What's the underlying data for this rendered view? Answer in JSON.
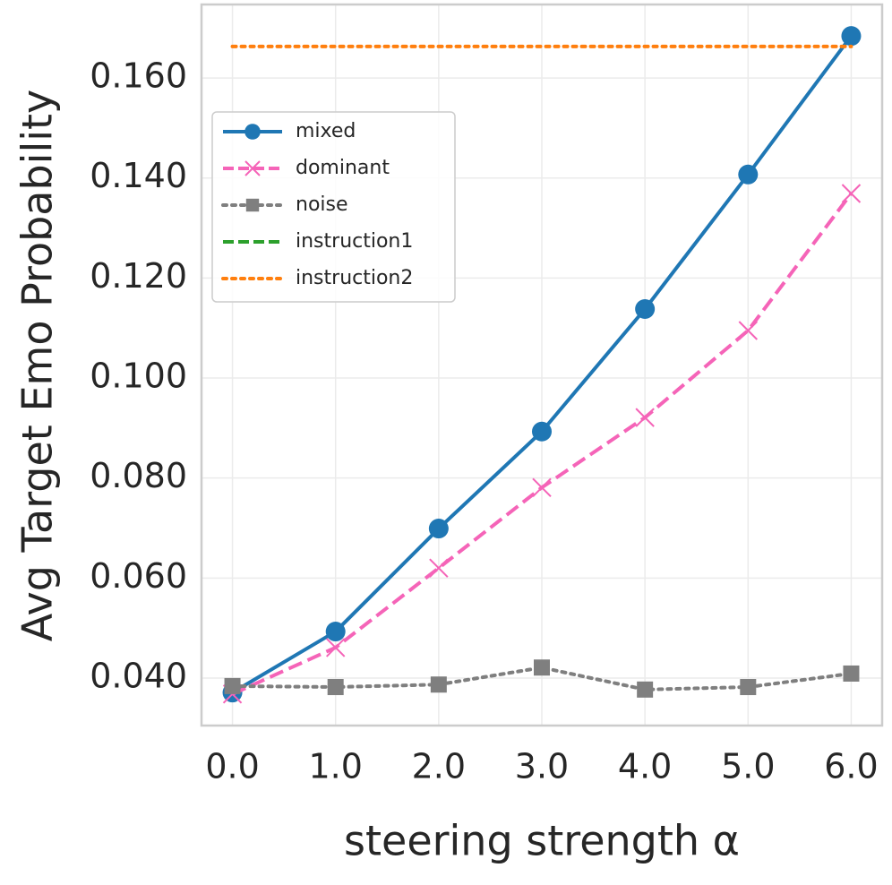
{
  "chart_data": {
    "type": "line",
    "xlabel": "steering strength α",
    "ylabel": "Avg Target Emo Probability",
    "x": [
      0,
      1,
      2,
      3,
      4,
      5,
      6
    ],
    "series": [
      {
        "name": "mixed",
        "color": "#1f77b4",
        "linestyle": "solid",
        "marker": "circle",
        "values": [
          0.0371,
          0.0493,
          0.0699,
          0.0893,
          0.1138,
          0.1407,
          0.1684
        ]
      },
      {
        "name": "dominant",
        "color": "#f564b8",
        "linestyle": "dashed",
        "marker": "x",
        "values": [
          0.0368,
          0.0461,
          0.062,
          0.0781,
          0.0921,
          0.1095,
          0.1369
        ]
      },
      {
        "name": "noise",
        "color": "#7f7f7f",
        "linestyle": "dotted",
        "marker": "square",
        "values": [
          0.0384,
          0.0382,
          0.0387,
          0.0421,
          0.0377,
          0.0382,
          0.0409
        ]
      },
      {
        "name": "instruction1",
        "color": "#2ca02c",
        "linestyle": "dashed",
        "marker": "none",
        "values": [
          null,
          null,
          null,
          null,
          null,
          null,
          null
        ]
      },
      {
        "name": "instruction2",
        "color": "#ff7f0e",
        "linestyle": "dotted",
        "marker": "none",
        "values": [
          0.1663,
          0.1663,
          0.1663,
          0.1663,
          0.1663,
          0.1663,
          0.1663
        ]
      }
    ],
    "xlim": [
      -0.3,
      6.3
    ],
    "ylim": [
      0.0305,
      0.1747
    ],
    "xticks": [
      {
        "value": 0,
        "label": "0.0"
      },
      {
        "value": 1,
        "label": "1.0"
      },
      {
        "value": 2,
        "label": "2.0"
      },
      {
        "value": 3,
        "label": "3.0"
      },
      {
        "value": 4,
        "label": "4.0"
      },
      {
        "value": 5,
        "label": "5.0"
      },
      {
        "value": 6,
        "label": "6.0"
      }
    ],
    "yticks": [
      {
        "value": 0.04,
        "label": "0.040"
      },
      {
        "value": 0.06,
        "label": "0.060"
      },
      {
        "value": 0.08,
        "label": "0.080"
      },
      {
        "value": 0.1,
        "label": "0.100"
      },
      {
        "value": 0.12,
        "label": "0.120"
      },
      {
        "value": 0.14,
        "label": "0.140"
      },
      {
        "value": 0.16,
        "label": "0.160"
      }
    ],
    "grid": true,
    "legend": "upper left"
  }
}
